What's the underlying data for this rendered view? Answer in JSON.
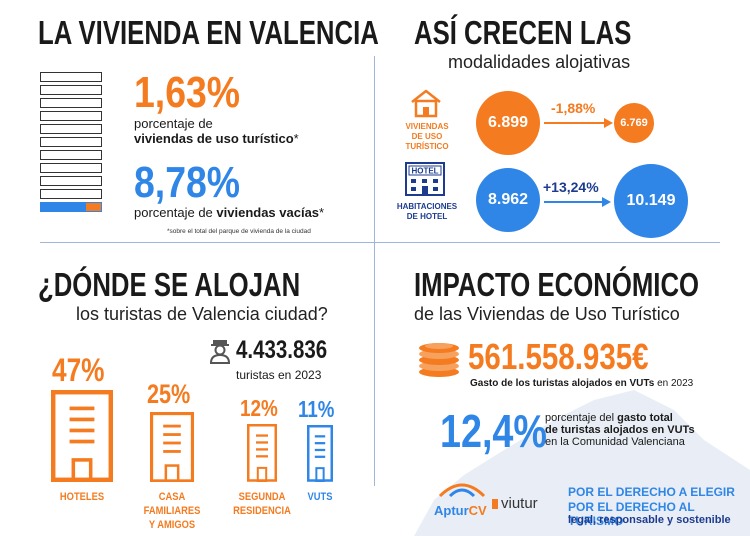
{
  "colors": {
    "orange": "#f47b20",
    "blue": "#2f86e6",
    "navy": "#1d3c8f"
  },
  "section1": {
    "title": "LA VIVIENDA EN VALENCIA",
    "vut_pct": "1,63%",
    "vut_desc_line1": "porcentaje de",
    "vut_desc_bold": "viviendas de uso turístico",
    "vut_desc_mark": "*",
    "vacant_pct": "8,78%",
    "vacant_desc_pre": "porcentaje de ",
    "vacant_desc_bold": "viviendas vacías",
    "vacant_desc_mark": "*",
    "footnote": "*sobre el total del parque de vivienda de la ciudad"
  },
  "section2": {
    "title": "ASÍ CRECEN LAS",
    "subtitle": "modalidades alojativas",
    "vut": {
      "icon": "house-icon",
      "label_line1": "VIVIENDAS",
      "label_line2": "DE USO TURÍSTICO",
      "from": "6.899",
      "change": "-1,88%",
      "to": "6.769"
    },
    "hotel": {
      "icon": "hotel-icon",
      "sign": "HOTEL",
      "label_line1": "HABITACIONES",
      "label_line2": "DE HOTEL",
      "from": "8.962",
      "change": "+13,24%",
      "to": "10.149"
    }
  },
  "section3": {
    "title": "¿DÓNDE SE ALOJAN",
    "subtitle": "los turistas de Valencia ciudad?",
    "tourists_icon": "tourist-icon",
    "tourists_total": "4.433.836",
    "tourists_desc": "turistas en 2023",
    "buildings": [
      {
        "pct": "47%",
        "label_line1": "HOTELES",
        "label_line2": "",
        "share": 47
      },
      {
        "pct": "25%",
        "label_line1": "CASA FAMILIARES",
        "label_line2": "Y AMIGOS",
        "share": 25
      },
      {
        "pct": "12%",
        "label_line1": "SEGUNDA",
        "label_line2": "RESIDENCIA",
        "share": 12
      },
      {
        "pct": "11%",
        "label_line1": "VUTS",
        "label_line2": "",
        "share": 11
      }
    ]
  },
  "section4": {
    "title": "IMPACTO ECONÓMICO",
    "subtitle": "de las Viviendas de Uso Turístico",
    "coins_icon": "coins-icon",
    "spend": "561.558.935€",
    "spend_desc_bold": "Gasto de los turistas alojados en VUTs",
    "spend_desc_rest": " en 2023",
    "share": "12,4%",
    "share_desc_pre": "porcentaje del ",
    "share_desc_bold1": "gasto total",
    "share_desc_bold2": "de turistas alojados en VUTs",
    "share_desc3": "en la Comunidad Valenciana",
    "logo1": "Aptur",
    "logo1_suffix": "CV",
    "logo2": "viutur",
    "slogan1": "POR EL DERECHO A ELEGIR",
    "slogan2": "POR EL DERECHO AL TURISMO",
    "slogan3": "legal, responsable y sostenible"
  }
}
